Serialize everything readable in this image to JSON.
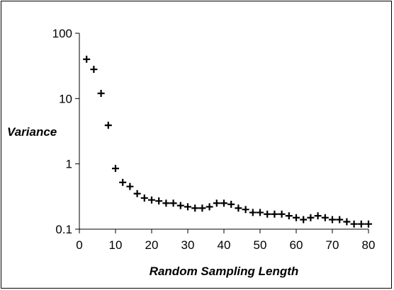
{
  "chart_data": {
    "type": "scatter",
    "title": "",
    "xlabel": "Random Sampling Length",
    "ylabel": "Variance",
    "xlim": [
      0,
      80
    ],
    "ylim": [
      0.1,
      100
    ],
    "y_scale": "log",
    "x_ticks": [
      "0",
      "10",
      "20",
      "30",
      "40",
      "50",
      "60",
      "70",
      "80"
    ],
    "y_ticks": [
      "0.1",
      "1",
      "10",
      "100"
    ],
    "grid": false,
    "legend": "none",
    "marker": "plus",
    "marker_color": "#000000",
    "points": [
      {
        "x": 2,
        "y": 40
      },
      {
        "x": 4,
        "y": 28
      },
      {
        "x": 6,
        "y": 12
      },
      {
        "x": 8,
        "y": 3.9
      },
      {
        "x": 10,
        "y": 0.85
      },
      {
        "x": 12,
        "y": 0.52
      },
      {
        "x": 14,
        "y": 0.45
      },
      {
        "x": 16,
        "y": 0.35
      },
      {
        "x": 18,
        "y": 0.3
      },
      {
        "x": 20,
        "y": 0.28
      },
      {
        "x": 22,
        "y": 0.27
      },
      {
        "x": 24,
        "y": 0.25
      },
      {
        "x": 26,
        "y": 0.25
      },
      {
        "x": 28,
        "y": 0.23
      },
      {
        "x": 30,
        "y": 0.22
      },
      {
        "x": 32,
        "y": 0.21
      },
      {
        "x": 34,
        "y": 0.21
      },
      {
        "x": 36,
        "y": 0.22
      },
      {
        "x": 38,
        "y": 0.25
      },
      {
        "x": 40,
        "y": 0.25
      },
      {
        "x": 42,
        "y": 0.24
      },
      {
        "x": 44,
        "y": 0.21
      },
      {
        "x": 46,
        "y": 0.2
      },
      {
        "x": 48,
        "y": 0.18
      },
      {
        "x": 50,
        "y": 0.18
      },
      {
        "x": 52,
        "y": 0.17
      },
      {
        "x": 54,
        "y": 0.17
      },
      {
        "x": 56,
        "y": 0.17
      },
      {
        "x": 58,
        "y": 0.16
      },
      {
        "x": 60,
        "y": 0.15
      },
      {
        "x": 62,
        "y": 0.14
      },
      {
        "x": 64,
        "y": 0.15
      },
      {
        "x": 66,
        "y": 0.16
      },
      {
        "x": 68,
        "y": 0.15
      },
      {
        "x": 70,
        "y": 0.14
      },
      {
        "x": 72,
        "y": 0.14
      },
      {
        "x": 74,
        "y": 0.13
      },
      {
        "x": 76,
        "y": 0.12
      },
      {
        "x": 78,
        "y": 0.12
      },
      {
        "x": 80,
        "y": 0.12
      }
    ]
  }
}
